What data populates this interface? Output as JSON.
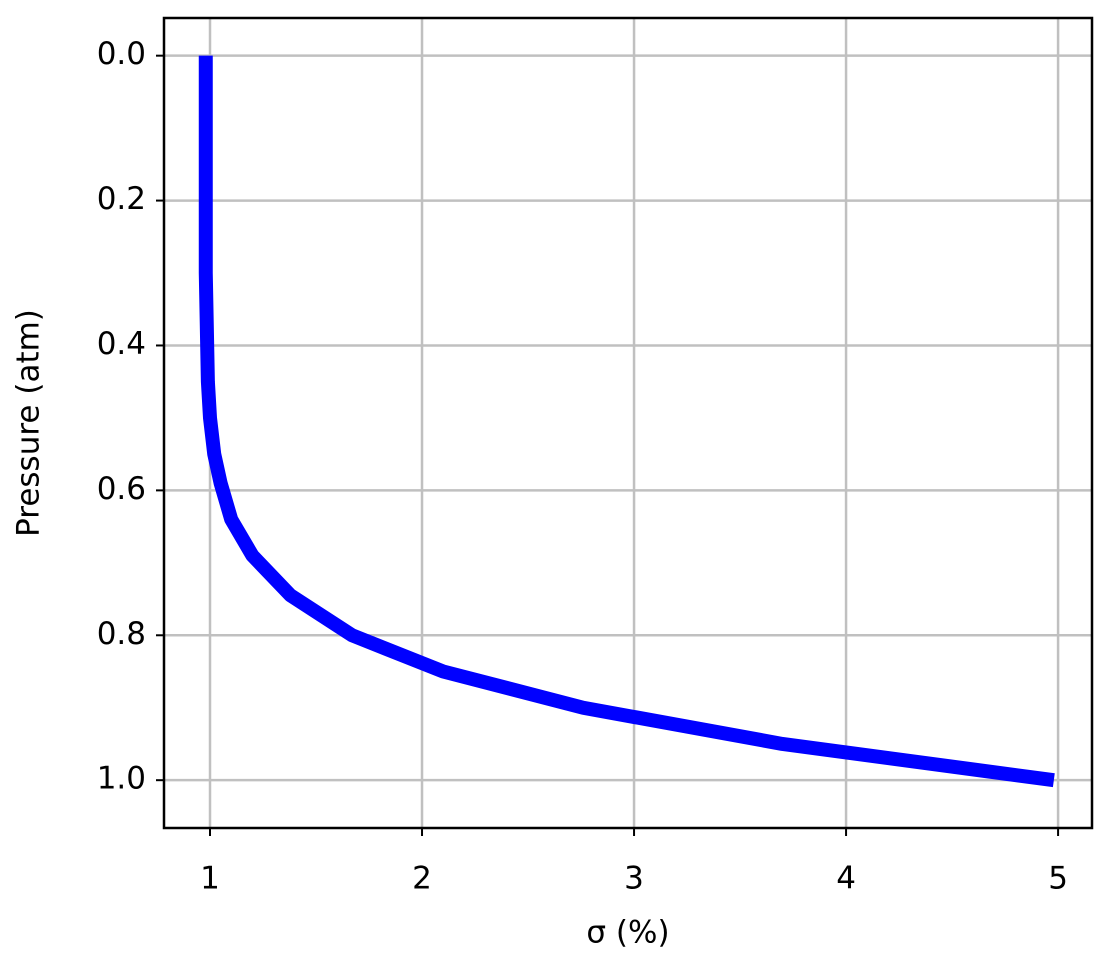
{
  "chart_data": {
    "type": "line",
    "x_label": "σ (%)",
    "y_label": "Pressure (atm)",
    "x": [
      0.98,
      0.98,
      0.99,
      1.0,
      1.02,
      1.05,
      1.1,
      1.2,
      1.38,
      1.67,
      2.1,
      2.76,
      3.7,
      4.98
    ],
    "series": [
      {
        "color": "#0000ff",
        "values": [
          0,
          0.3,
          0.45,
          0.5,
          0.55,
          0.59,
          0.64,
          0.69,
          0.745,
          0.8,
          0.85,
          0.9,
          0.95,
          1.0
        ]
      }
    ],
    "xlim": [
      0.783,
      5.16
    ],
    "ylim": [
      -0.052,
      1.066
    ],
    "y_inverted": true,
    "xticks": [
      1,
      2,
      3,
      4,
      5
    ],
    "yticks": [
      {
        "value": 0,
        "label": "0.0"
      },
      {
        "value": 0.2,
        "label": "0.2"
      },
      {
        "value": 0.4,
        "label": "0.4"
      },
      {
        "value": 0.6,
        "label": "0.6"
      },
      {
        "value": 0.8,
        "label": "0.8"
      },
      {
        "value": 1.0,
        "label": "1.0"
      }
    ],
    "grid": true
  }
}
